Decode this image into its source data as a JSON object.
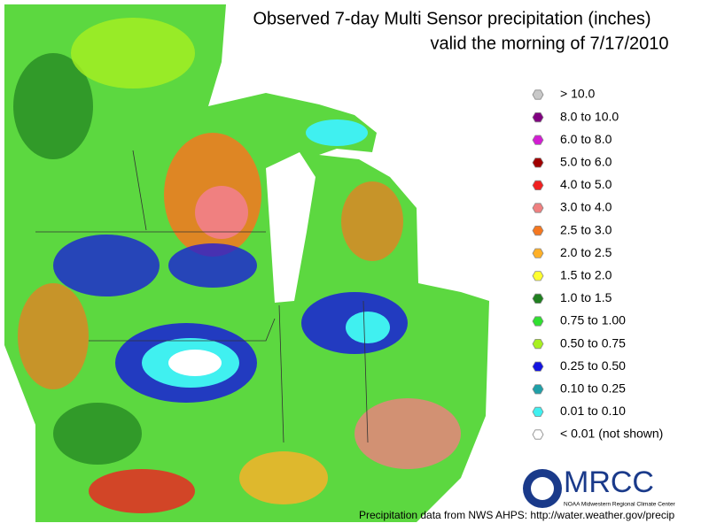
{
  "header": {
    "title": "Observed 7-day Multi Sensor precipitation (inches)",
    "subtitle": "valid the morning of 7/17/2010"
  },
  "legend": [
    {
      "label": "> 10.0",
      "color": "#c8c8c8"
    },
    {
      "label": "8.0 to 10.0",
      "color": "#800080"
    },
    {
      "label": "6.0 to 8.0",
      "color": "#d21ed2"
    },
    {
      "label": "5.0 to 6.0",
      "color": "#a00000"
    },
    {
      "label": "4.0 to 5.0",
      "color": "#f02020"
    },
    {
      "label": "3.0 to 4.0",
      "color": "#f08080"
    },
    {
      "label": "2.5 to 3.0",
      "color": "#f57820"
    },
    {
      "label": "2.0 to 2.5",
      "color": "#ffb028"
    },
    {
      "label": "1.5 to 2.0",
      "color": "#ffff30"
    },
    {
      "label": "1.0 to 1.5",
      "color": "#208020"
    },
    {
      "label": "0.75 to 1.00",
      "color": "#30e030"
    },
    {
      "label": "0.50 to 0.75",
      "color": "#a8f020"
    },
    {
      "label": "0.25 to 0.50",
      "color": "#1414e0"
    },
    {
      "label": "0.10 to 0.25",
      "color": "#20a0a8"
    },
    {
      "label": "0.01 to 0.10",
      "color": "#40f0f0"
    },
    {
      "label": "< 0.01 (not shown)",
      "color": "#ffffff"
    }
  ],
  "logo": {
    "text": "MRCC",
    "caption": "NOAA Midwestern Regional Climate Center"
  },
  "footer": "Precipitation data from NWS AHPS:  http://water.weather.gov/precip"
}
